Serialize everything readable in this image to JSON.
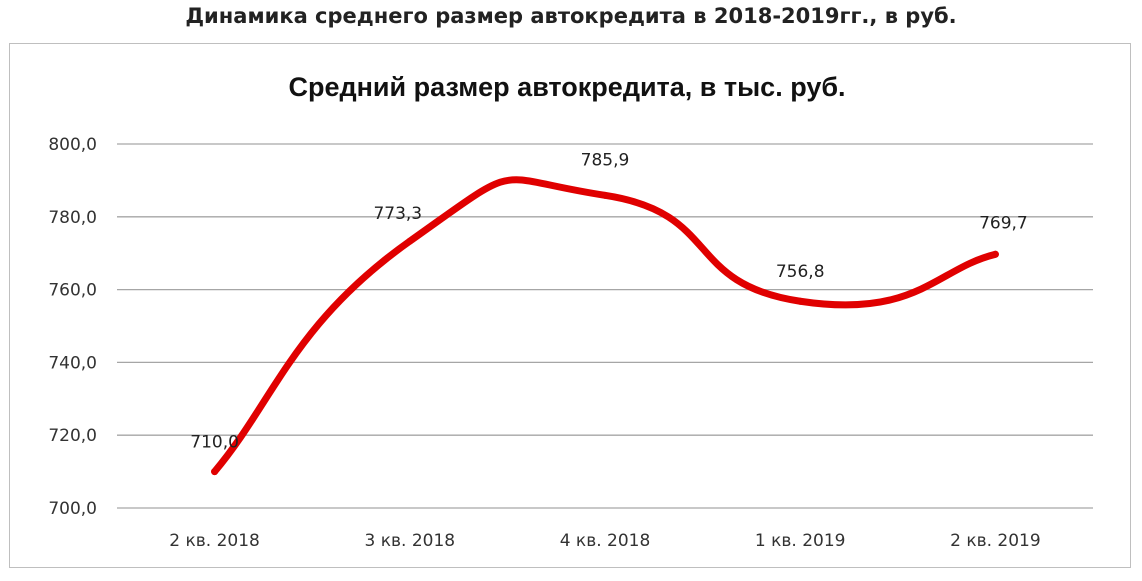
{
  "page": {
    "title": "Динамика среднего размер автокредита в 2018-2019гг., в руб."
  },
  "chart_data": {
    "type": "line",
    "title": "Средний размер автокредита, в тыс. руб.",
    "xlabel": "",
    "ylabel": "",
    "categories": [
      "2 кв. 2018",
      "3 кв. 2018",
      "4 кв. 2018",
      "1 кв. 2019",
      "2 кв. 2019"
    ],
    "series": [
      {
        "values": [
          710.0,
          773.3,
          785.9,
          756.8,
          769.7
        ],
        "labels": [
          "710,0",
          "773,3",
          "785,9",
          "756,8",
          "769,7"
        ],
        "color": "#e00000",
        "smooth": true
      }
    ],
    "yticks": [
      "700,0",
      "720,0",
      "740,0",
      "760,0",
      "780,0",
      "800,0"
    ],
    "ylim": [
      700,
      800
    ],
    "grid": true,
    "legend": "none",
    "colors": {
      "line": "#e00000",
      "grid": "#a6a6a6",
      "frame": "#bfbfbf"
    }
  }
}
